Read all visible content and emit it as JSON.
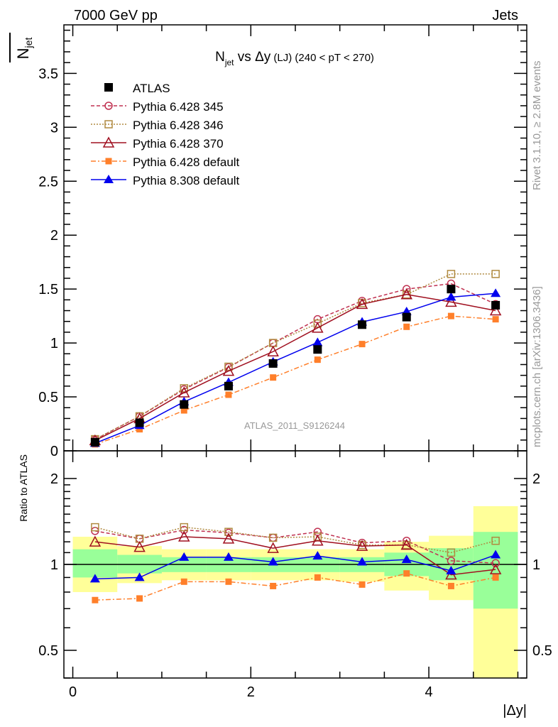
{
  "header": {
    "left": "7000 GeV pp",
    "right": "Jets"
  },
  "side_texts": {
    "rivet": "Rivet 3.1.10, ≥ 2.8M events",
    "mcplots": "mcplots.cern.ch [arXiv:1306.3436]"
  },
  "watermark": "ATLAS_2011_S9126244",
  "chart_data": [
    {
      "type": "line",
      "title": {
        "main": "N",
        "sub": "jet",
        "rest": " vs Δy",
        "small": " (LJ)",
        "tail": " (240 < pT < 270)"
      },
      "ylabel": {
        "main": "N",
        "sub": "jet"
      },
      "xlabel": "|Δy|",
      "xlim": [
        -0.1,
        5.1
      ],
      "ylim": [
        0,
        3.95
      ],
      "yticks": [
        "0",
        "0.5",
        "1",
        "1.5",
        "2",
        "2.5",
        "3",
        "3.5"
      ],
      "x": [
        0.25,
        0.75,
        1.25,
        1.75,
        2.25,
        2.75,
        3.25,
        3.75,
        4.25,
        4.75
      ],
      "legend_position": "top-left",
      "series": [
        {
          "name": "ATLAS",
          "color": "#000000",
          "marker": "square-filled",
          "dash": "",
          "values": [
            0.08,
            0.26,
            0.43,
            0.6,
            0.81,
            0.94,
            1.17,
            1.24,
            1.5,
            1.35
          ]
        },
        {
          "name": "Pythia 6.428 345",
          "color": "#c03050",
          "marker": "circle-open",
          "dash": "5,3",
          "values": [
            0.105,
            0.32,
            0.57,
            0.775,
            1.0,
            1.22,
            1.39,
            1.5,
            1.55,
            1.36
          ]
        },
        {
          "name": "Pythia 6.428 346",
          "color": "#b08a40",
          "marker": "square-open",
          "dash": "2,2",
          "values": [
            0.108,
            0.32,
            0.58,
            0.78,
            1.0,
            1.18,
            1.37,
            1.45,
            1.64,
            1.64
          ]
        },
        {
          "name": "Pythia 6.428 370",
          "color": "#a01020",
          "marker": "triangle-open",
          "dash": "",
          "values": [
            0.096,
            0.3,
            0.54,
            0.74,
            0.92,
            1.14,
            1.36,
            1.45,
            1.38,
            1.3
          ]
        },
        {
          "name": "Pythia 6.428 default",
          "color": "#ff7f2a",
          "marker": "square-filled-small",
          "dash": "7,3,2,3",
          "values": [
            0.06,
            0.2,
            0.375,
            0.52,
            0.68,
            0.845,
            0.99,
            1.15,
            1.25,
            1.22
          ]
        },
        {
          "name": "Pythia 8.308 default",
          "color": "#0000ee",
          "marker": "triangle-filled",
          "dash": "",
          "values": [
            0.07,
            0.235,
            0.455,
            0.635,
            0.825,
            1.005,
            1.195,
            1.29,
            1.425,
            1.46
          ]
        }
      ]
    },
    {
      "type": "line",
      "ylabel": "Ratio to ATLAS",
      "yscale": "log",
      "ylim": [
        0.4,
        2.5
      ],
      "yticks": [
        "0.5",
        "1",
        "2"
      ],
      "xticks": [
        "0",
        "2",
        "4"
      ],
      "bin_edges": [
        0,
        0.5,
        1,
        1.5,
        2,
        2.5,
        3,
        3.5,
        4,
        4.5,
        5
      ],
      "stat_band": [
        [
          0.9,
          1.13
        ],
        [
          0.93,
          1.08
        ],
        [
          0.94,
          1.06
        ],
        [
          0.94,
          1.06
        ],
        [
          0.94,
          1.06
        ],
        [
          0.94,
          1.06
        ],
        [
          0.94,
          1.06
        ],
        [
          0.91,
          1.1
        ],
        [
          0.88,
          1.14
        ],
        [
          0.7,
          1.3
        ]
      ],
      "total_band": [
        [
          0.8,
          1.25
        ],
        [
          0.86,
          1.16
        ],
        [
          0.88,
          1.13
        ],
        [
          0.88,
          1.13
        ],
        [
          0.88,
          1.13
        ],
        [
          0.88,
          1.13
        ],
        [
          0.87,
          1.13
        ],
        [
          0.81,
          1.2
        ],
        [
          0.75,
          1.26
        ],
        [
          0.35,
          1.6
        ]
      ],
      "band_colors": {
        "stat": "#99ff99",
        "total": "#ffff99"
      },
      "ratios": {
        "Pythia 6.428 345": [
          1.31,
          1.23,
          1.32,
          1.29,
          1.24,
          1.3,
          1.19,
          1.21,
          1.03,
          1.01
        ],
        "Pythia 6.428 346": [
          1.35,
          1.23,
          1.35,
          1.3,
          1.24,
          1.25,
          1.17,
          1.17,
          1.1,
          1.21
        ],
        "Pythia 6.428 370": [
          1.2,
          1.15,
          1.25,
          1.23,
          1.14,
          1.21,
          1.16,
          1.17,
          0.92,
          0.96
        ],
        "Pythia 6.428 default": [
          0.75,
          0.76,
          0.87,
          0.87,
          0.84,
          0.9,
          0.85,
          0.93,
          0.84,
          0.9
        ],
        "Pythia 8.308 default": [
          0.89,
          0.9,
          1.06,
          1.06,
          1.02,
          1.07,
          1.02,
          1.04,
          0.95,
          1.08
        ]
      }
    }
  ]
}
